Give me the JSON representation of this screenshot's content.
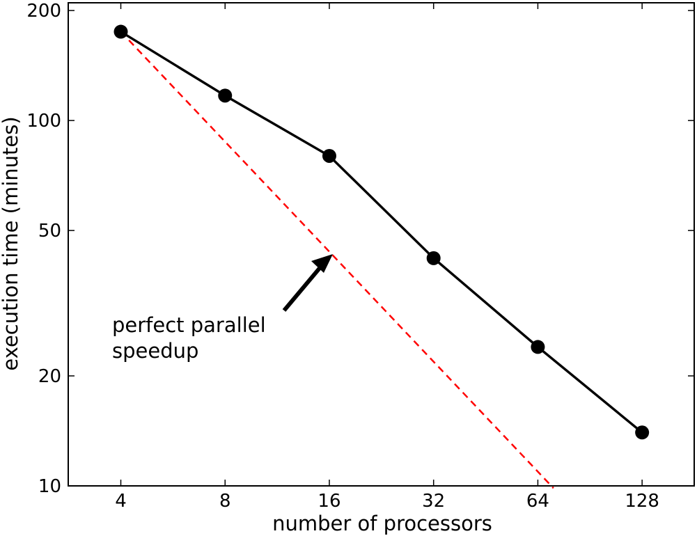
{
  "chart_data": {
    "type": "line",
    "xscale": "log2",
    "yscale": "log",
    "x": [
      4,
      8,
      16,
      32,
      64,
      128
    ],
    "series": [
      {
        "values": [
          175,
          117,
          80,
          42,
          24,
          14
        ]
      }
    ],
    "reference_line": {
      "label": "perfect parallel speedup",
      "label_lines": [
        "perfect parallel",
        "speedup"
      ],
      "start": [
        4,
        175
      ],
      "end": [
        71,
        9.86
      ],
      "color": "#ff0000",
      "style": "dashed"
    },
    "xticks": [
      4,
      8,
      16,
      32,
      64,
      128
    ],
    "xtick_labels": [
      "4",
      "8",
      "16",
      "32",
      "64",
      "128"
    ],
    "yticks": [
      10,
      20,
      50,
      100,
      200
    ],
    "ytick_labels": [
      "10",
      "20",
      "50",
      "100",
      "200"
    ],
    "xlabel": "number of processors",
    "ylabel": "execution time (minutes)",
    "xlim": [
      2.82,
      181
    ],
    "ylim": [
      10,
      210
    ],
    "grid": false,
    "line_color": "#000000",
    "marker_color": "#000000"
  }
}
